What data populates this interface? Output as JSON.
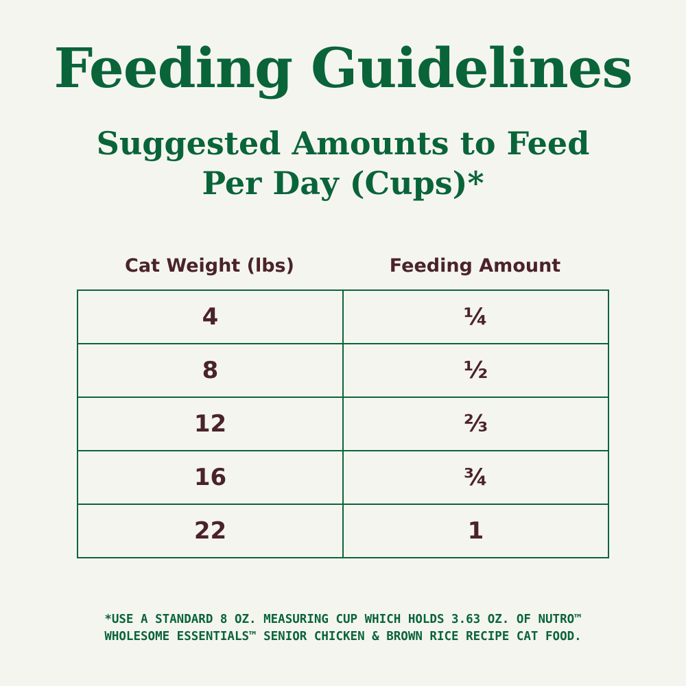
{
  "header": {
    "title": "Feeding Guidelines",
    "subtitle_line1": "Suggested Amounts to Feed",
    "subtitle_line2": "Per Day (Cups)*"
  },
  "table": {
    "columns": [
      "Cat Weight (lbs)",
      "Feeding Amount"
    ],
    "rows": [
      [
        "4",
        "¼"
      ],
      [
        "8",
        "½"
      ],
      [
        "12",
        "⅔"
      ],
      [
        "16",
        "¾"
      ],
      [
        "22",
        "1"
      ]
    ]
  },
  "footnote": {
    "line1": "*USE A STANDARD 8 OZ. MEASURING CUP WHICH HOLDS 3.63 OZ. OF NUTRO™",
    "line2": "WHOLESOME ESSENTIALS™ SENIOR CHICKEN & BROWN RICE RECIPE CAT FOOD."
  }
}
